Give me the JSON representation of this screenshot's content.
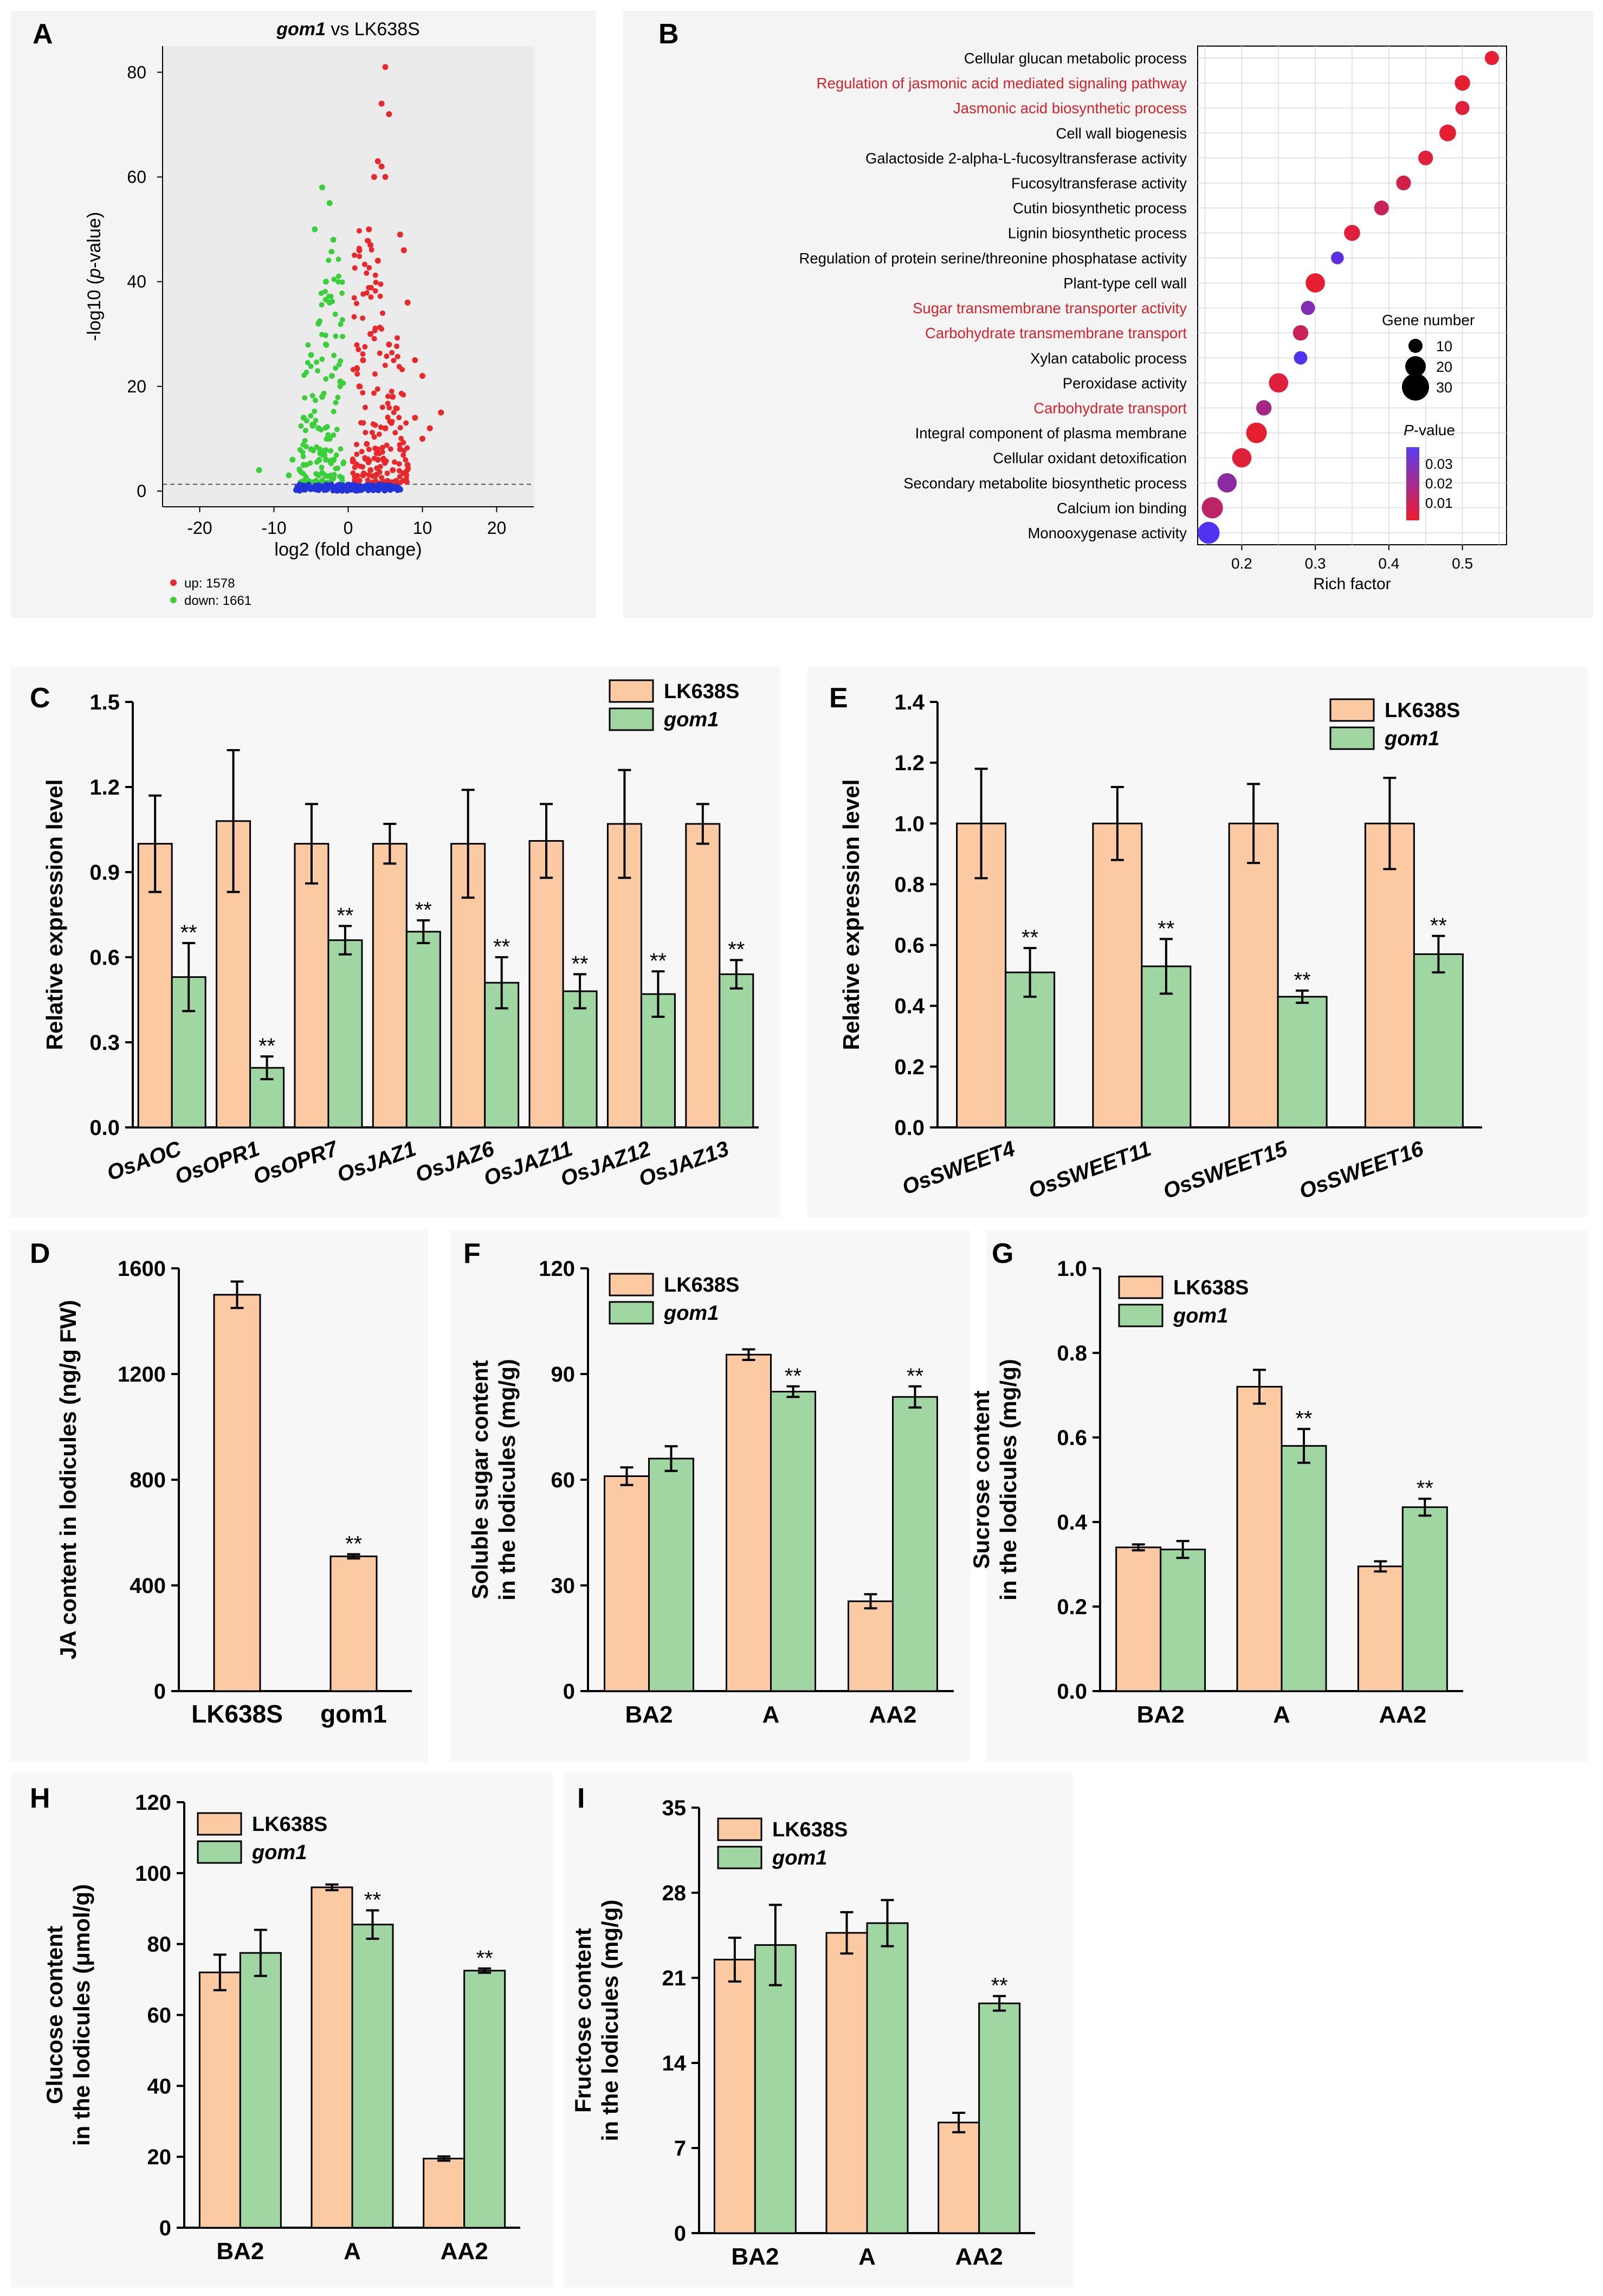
{
  "colors": {
    "lk": "#fbc9a2",
    "gom": "#9fd6a2",
    "up": "#e8292c",
    "down": "#3ccf3c",
    "ns": "#2233d8",
    "red_text": "#d2232a",
    "axis": "#000000"
  },
  "chart_data": [
    {
      "panel": "A",
      "type": "scatter",
      "title": "gom1 vs LK638S",
      "title_italic": "gom1",
      "title_rest": " vs LK638S",
      "xlabel": "log2 (fold change)",
      "ylabel": "-log10 (p-value)",
      "ylabel_pre": "-log10 (",
      "ylabel_italic": "p",
      "ylabel_post": "-value)",
      "xlim": [
        -25,
        25
      ],
      "ylim": [
        -3,
        85
      ],
      "xticks": [
        "-20",
        "-10",
        "0",
        "10",
        "20"
      ],
      "yticks": [
        "0",
        "20",
        "40",
        "60",
        "80"
      ],
      "threshold_y": 1.3,
      "legend": [
        {
          "label": "up: 1578",
          "color_key": "up"
        },
        {
          "label": "down: 1661",
          "color_key": "down"
        }
      ],
      "series": [
        {
          "name": "up",
          "points": [
            [
              5,
              81
            ],
            [
              4.5,
              74
            ],
            [
              5.5,
              72
            ],
            [
              4,
              63
            ],
            [
              4.5,
              62
            ],
            [
              5,
              60
            ],
            [
              3.5,
              60
            ],
            [
              2.8,
              50
            ],
            [
              3,
              47
            ],
            [
              7.5,
              46
            ],
            [
              7,
              49
            ],
            [
              4,
              44
            ],
            [
              1.5,
              46
            ],
            [
              8,
              36
            ],
            [
              9,
              25
            ],
            [
              10,
              22
            ],
            [
              12.5,
              15
            ],
            [
              9,
              14
            ],
            [
              6,
              18
            ],
            [
              3,
              30
            ],
            [
              2,
              25
            ],
            [
              1.5,
              20
            ],
            [
              5,
              12
            ],
            [
              2.5,
              9
            ],
            [
              7,
              8
            ],
            [
              4,
              6
            ],
            [
              3,
              4
            ],
            [
              6,
              4
            ],
            [
              2,
              3
            ],
            [
              8,
              5
            ],
            [
              1.5,
              2
            ],
            [
              10,
              10
            ],
            [
              11,
              12
            ],
            [
              5.5,
              28
            ]
          ]
        },
        {
          "name": "down",
          "points": [
            [
              -3.5,
              58
            ],
            [
              -2.5,
              55
            ],
            [
              -4.5,
              50
            ],
            [
              -2,
              48
            ],
            [
              -3,
              40
            ],
            [
              -2.5,
              36
            ],
            [
              -4,
              32
            ],
            [
              -3,
              28
            ],
            [
              -5,
              26
            ],
            [
              -2.2,
              22
            ],
            [
              -3.5,
              18
            ],
            [
              -6,
              14
            ],
            [
              -4,
              12
            ],
            [
              -2.5,
              10
            ],
            [
              -7.5,
              6
            ],
            [
              -5,
              8
            ],
            [
              -3,
              6
            ],
            [
              -6,
              5
            ],
            [
              -12,
              4
            ],
            [
              -4,
              3
            ],
            [
              -8,
              3
            ],
            [
              -2,
              2.5
            ],
            [
              -3.5,
              2
            ]
          ]
        },
        {
          "name": "ns",
          "points": [
            [
              -1,
              0.5
            ],
            [
              0.5,
              0.3
            ],
            [
              -0.5,
              0.8
            ],
            [
              1,
              0.7
            ],
            [
              -1.5,
              0.4
            ],
            [
              1.5,
              0.9
            ],
            [
              0,
              1
            ],
            [
              -2,
              0.6
            ],
            [
              2,
              0.4
            ],
            [
              -3,
              0.3
            ],
            [
              3,
              0.5
            ],
            [
              -0.8,
              1.1
            ],
            [
              0.8,
              1.2
            ],
            [
              -4,
              0.2
            ],
            [
              4,
              0.3
            ],
            [
              -2.5,
              1
            ],
            [
              2.5,
              1.1
            ],
            [
              -5,
              0.4
            ],
            [
              5,
              0.2
            ],
            [
              -1.2,
              0.2
            ],
            [
              1.2,
              0.1
            ],
            [
              -6,
              0.3
            ],
            [
              6,
              0.5
            ],
            [
              0.2,
              0.6
            ],
            [
              -0.2,
              0.2
            ],
            [
              -3.5,
              0.9
            ],
            [
              3.5,
              0.8
            ],
            [
              -7,
              0.2
            ],
            [
              7,
              0.3
            ]
          ]
        }
      ]
    },
    {
      "panel": "B",
      "type": "scatter",
      "xlabel": "Rich factor",
      "xlim": [
        0.14,
        0.56
      ],
      "xticks": [
        "0.2",
        "0.3",
        "0.4",
        "0.5"
      ],
      "size_legend_title": "Gene number",
      "size_legend": [
        "10",
        "20",
        "30"
      ],
      "color_legend_title": "P-value",
      "color_legend_title_italic": "P",
      "color_legend_title_rest": "-value",
      "color_legend": [
        "0.03",
        "0.02",
        "0.01"
      ],
      "terms": [
        {
          "label": "Cellular glucan metabolic process",
          "rich": 0.54,
          "genes": 10,
          "p": 0.005,
          "highlight": false
        },
        {
          "label": "Regulation of jasmonic acid mediated signaling pathway",
          "rich": 0.5,
          "genes": 12,
          "p": 0.004,
          "highlight": true
        },
        {
          "label": "Jasmonic acid biosynthetic process",
          "rich": 0.5,
          "genes": 10,
          "p": 0.006,
          "highlight": true
        },
        {
          "label": "Cell wall biogenesis",
          "rich": 0.48,
          "genes": 14,
          "p": 0.004,
          "highlight": false
        },
        {
          "label": "Galactoside 2-alpha-L-fucosyltransferase activity",
          "rich": 0.45,
          "genes": 11,
          "p": 0.006,
          "highlight": false
        },
        {
          "label": "Fucosyltransferase activity",
          "rich": 0.42,
          "genes": 11,
          "p": 0.008,
          "highlight": false
        },
        {
          "label": "Cutin biosynthetic process",
          "rich": 0.39,
          "genes": 11,
          "p": 0.01,
          "highlight": false
        },
        {
          "label": "Lignin biosynthetic process",
          "rich": 0.35,
          "genes": 13,
          "p": 0.006,
          "highlight": false
        },
        {
          "label": "Regulation of protein serine/threonine phosphatase activity",
          "rich": 0.33,
          "genes": 8,
          "p": 0.028,
          "highlight": false
        },
        {
          "label": "Plant-type cell wall",
          "rich": 0.3,
          "genes": 18,
          "p": 0.004,
          "highlight": false
        },
        {
          "label": "Sugar transmembrane transporter activity",
          "rich": 0.29,
          "genes": 10,
          "p": 0.022,
          "highlight": true
        },
        {
          "label": "Carbohydrate transmembrane transport",
          "rich": 0.28,
          "genes": 12,
          "p": 0.01,
          "highlight": true
        },
        {
          "label": "Xylan catabolic process",
          "rich": 0.28,
          "genes": 9,
          "p": 0.03,
          "highlight": false
        },
        {
          "label": "Peroxidase activity",
          "rich": 0.25,
          "genes": 18,
          "p": 0.006,
          "highlight": false
        },
        {
          "label": "Carbohydrate transport",
          "rich": 0.23,
          "genes": 12,
          "p": 0.016,
          "highlight": true
        },
        {
          "label": "Integral component of plasma membrane",
          "rich": 0.22,
          "genes": 20,
          "p": 0.004,
          "highlight": false
        },
        {
          "label": "Cellular oxidant detoxification",
          "rich": 0.2,
          "genes": 18,
          "p": 0.006,
          "highlight": false
        },
        {
          "label": "Secondary metabolite biosynthetic process",
          "rich": 0.18,
          "genes": 18,
          "p": 0.02,
          "highlight": false
        },
        {
          "label": "Calcium ion binding",
          "rich": 0.16,
          "genes": 21,
          "p": 0.012,
          "highlight": false
        },
        {
          "label": "Monooxygenase activity",
          "rich": 0.155,
          "genes": 22,
          "p": 0.03,
          "highlight": false
        }
      ]
    },
    {
      "panel": "C",
      "type": "bar",
      "ylabel": "Relative expression level",
      "ylim": [
        0,
        1.5
      ],
      "yticks": [
        "0.0",
        "0.3",
        "0.6",
        "0.9",
        "1.2",
        "1.5"
      ],
      "categories": [
        "OsAOC",
        "OsOPR1",
        "OsOPR7",
        "OsJAZ1",
        "OsJAZ6",
        "OsJAZ11",
        "OsJAZ12",
        "OsJAZ13"
      ],
      "series": [
        {
          "name": "LK638S",
          "values": [
            1.0,
            1.08,
            1.0,
            1.0,
            1.0,
            1.01,
            1.07,
            1.07
          ],
          "errors": [
            0.17,
            0.25,
            0.14,
            0.07,
            0.19,
            0.13,
            0.19,
            0.07
          ]
        },
        {
          "name": "gom1",
          "values": [
            0.53,
            0.21,
            0.66,
            0.69,
            0.51,
            0.48,
            0.47,
            0.54
          ],
          "errors": [
            0.12,
            0.04,
            0.05,
            0.04,
            0.09,
            0.06,
            0.08,
            0.05
          ]
        }
      ],
      "significance": [
        "**",
        "**",
        "**",
        "**",
        "**",
        "**",
        "**",
        "**"
      ]
    },
    {
      "panel": "E",
      "type": "bar",
      "ylabel": "Relative expression level",
      "ylim": [
        0,
        1.4
      ],
      "yticks": [
        "0.0",
        "0.2",
        "0.4",
        "0.6",
        "0.8",
        "1.0",
        "1.2",
        "1.4"
      ],
      "categories": [
        "OsSWEET4",
        "OsSWEET11",
        "OsSWEET15",
        "OsSWEET16"
      ],
      "series": [
        {
          "name": "LK638S",
          "values": [
            1.0,
            1.0,
            1.0,
            1.0
          ],
          "errors": [
            0.18,
            0.12,
            0.13,
            0.15
          ]
        },
        {
          "name": "gom1",
          "values": [
            0.51,
            0.53,
            0.43,
            0.57
          ],
          "errors": [
            0.08,
            0.09,
            0.02,
            0.06
          ]
        }
      ],
      "significance": [
        "**",
        "**",
        "**",
        "**"
      ]
    },
    {
      "panel": "D",
      "type": "bar",
      "ylabel": "JA content in lodicules (ng/g FW)",
      "ylim": [
        0,
        1600
      ],
      "yticks": [
        "0",
        "400",
        "800",
        "1200",
        "1600"
      ],
      "categories": [
        "LK638S",
        "gom1"
      ],
      "values": [
        1500,
        510
      ],
      "errors": [
        50,
        8
      ],
      "significance": [
        "",
        "**"
      ]
    },
    {
      "panel": "F",
      "type": "bar",
      "ylabel": "Soluble sugar content",
      "ylabel2": "in the lodicules (mg/g)",
      "ylim": [
        0,
        120
      ],
      "yticks": [
        "0",
        "30",
        "60",
        "90",
        "120"
      ],
      "categories": [
        "BA2",
        "A",
        "AA2"
      ],
      "series": [
        {
          "name": "LK638S",
          "values": [
            61,
            95.5,
            25.5
          ],
          "errors": [
            2.5,
            1.5,
            2
          ]
        },
        {
          "name": "gom1",
          "values": [
            66,
            85,
            83.5
          ],
          "errors": [
            3.5,
            1.5,
            3
          ]
        }
      ],
      "significance": [
        "",
        "**",
        "**"
      ]
    },
    {
      "panel": "G",
      "type": "bar",
      "ylabel": "Sucrose content",
      "ylabel2": "in the lodicules (mg/g)",
      "ylim": [
        0,
        1.0
      ],
      "yticks": [
        "0.0",
        "0.2",
        "0.4",
        "0.6",
        "0.8",
        "1.0"
      ],
      "categories": [
        "BA2",
        "A",
        "AA2"
      ],
      "series": [
        {
          "name": "LK638S",
          "values": [
            0.34,
            0.72,
            0.295
          ],
          "errors": [
            0.007,
            0.04,
            0.012
          ]
        },
        {
          "name": "gom1",
          "values": [
            0.335,
            0.58,
            0.435
          ],
          "errors": [
            0.02,
            0.04,
            0.02
          ]
        }
      ],
      "significance": [
        "",
        "**",
        "**"
      ]
    },
    {
      "panel": "H",
      "type": "bar",
      "ylabel": "Glucose content",
      "ylabel2": "in the lodicules (μmol/g)",
      "ylim": [
        0,
        120
      ],
      "yticks": [
        "0",
        "20",
        "40",
        "60",
        "80",
        "100",
        "120"
      ],
      "categories": [
        "BA2",
        "A",
        "AA2"
      ],
      "series": [
        {
          "name": "LK638S",
          "values": [
            72,
            96,
            19.5
          ],
          "errors": [
            5,
            0.8,
            0.6
          ]
        },
        {
          "name": "gom1",
          "values": [
            77.5,
            85.5,
            72.5
          ],
          "errors": [
            6.5,
            4,
            0.6
          ]
        }
      ],
      "significance": [
        "",
        "**",
        "**"
      ]
    },
    {
      "panel": "I",
      "type": "bar",
      "ylabel": "Fructose content",
      "ylabel2": "in the lodicules (mg/g)",
      "ylim": [
        0,
        35
      ],
      "yticks": [
        "0",
        "7",
        "14",
        "21",
        "28",
        "35"
      ],
      "categories": [
        "BA2",
        "A",
        "AA2"
      ],
      "series": [
        {
          "name": "LK638S",
          "values": [
            22.5,
            24.7,
            9.1
          ],
          "errors": [
            1.8,
            1.7,
            0.8
          ]
        },
        {
          "name": "gom1",
          "values": [
            23.7,
            25.5,
            18.9
          ],
          "errors": [
            3.3,
            1.9,
            0.6
          ]
        }
      ],
      "significance": [
        "",
        "",
        "**"
      ]
    }
  ]
}
